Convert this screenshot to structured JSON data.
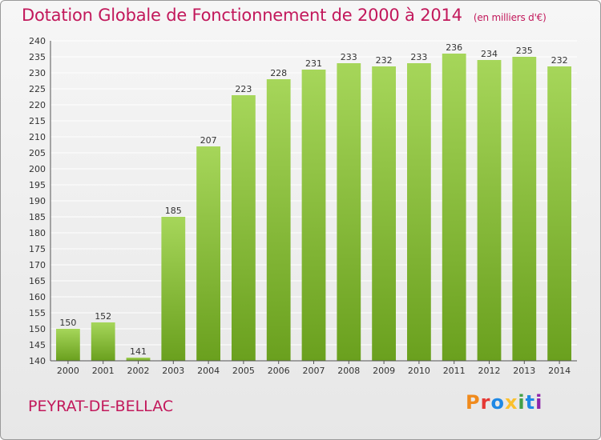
{
  "header": {
    "title": "Dotation Globale de Fonctionnement de 2000 à 2014",
    "unit": "(en milliers d'€)"
  },
  "footer": {
    "commune": "PEYRAT-DE-BELLAC",
    "logo_text": "Proxiti",
    "logo_colors": [
      "#f08a1c",
      "#e53935",
      "#1e88e5",
      "#fbc02d",
      "#43a047",
      "#1e88e5",
      "#8e24aa"
    ]
  },
  "colors": {
    "bar_light": "#a6d65a",
    "bar_dark": "#6aa01e",
    "title": "#c2185b",
    "grid": "#ffffff"
  },
  "chart_data": {
    "type": "bar",
    "title": "Dotation Globale de Fonctionnement de 2000 à 2014",
    "subtitle": "(en milliers d'€)",
    "xlabel": "",
    "ylabel": "",
    "categories": [
      "2000",
      "2001",
      "2002",
      "2003",
      "2004",
      "2005",
      "2006",
      "2007",
      "2008",
      "2009",
      "2010",
      "2011",
      "2012",
      "2013",
      "2014"
    ],
    "values": [
      150,
      152,
      141,
      185,
      207,
      223,
      228,
      231,
      233,
      232,
      233,
      236,
      234,
      235,
      232
    ],
    "ylim": [
      140,
      240
    ],
    "ytick_step": 5,
    "grid": true,
    "legend": "none"
  }
}
